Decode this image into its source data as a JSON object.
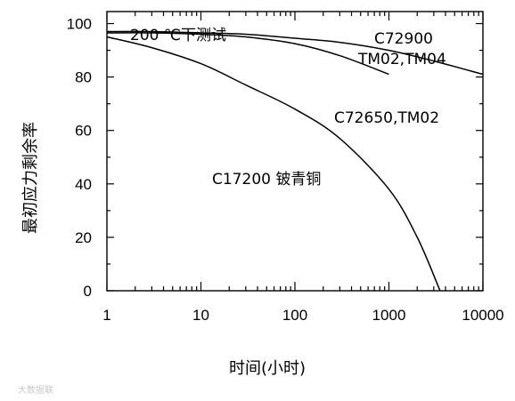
{
  "chart_data": {
    "type": "line",
    "title": "",
    "xlabel": "时间(小时)",
    "ylabel": "最初应力剩余率",
    "x_scale": "log",
    "xlim": [
      1,
      10000
    ],
    "ylim": [
      0,
      100
    ],
    "x_ticks": [
      "1",
      "10",
      "100",
      "1000",
      "10000"
    ],
    "y_ticks": [
      "0",
      "20",
      "40",
      "60",
      "80",
      "100"
    ],
    "grid": false,
    "annotations": {
      "condition": "200 ℃下测试",
      "c72900_line1": "C72900",
      "c72900_line2": "TM02,TM04",
      "c72650": "C72650,TM02",
      "c17200": "C17200 铍青铜"
    },
    "series": [
      {
        "name": "C72900 TM02,TM04",
        "x": [
          1,
          3,
          10,
          30,
          100,
          300,
          1000,
          3000,
          10000
        ],
        "y": [
          97,
          97,
          96.5,
          96,
          94.5,
          93,
          90,
          86,
          81
        ]
      },
      {
        "name": "C72650,TM02",
        "x": [
          1,
          3,
          10,
          30,
          100,
          300,
          1000
        ],
        "y": [
          96.5,
          96.5,
          96,
          95,
          92.5,
          88,
          81
        ]
      },
      {
        "name": "C17200 铍青铜",
        "x": [
          1,
          3,
          10,
          30,
          100,
          300,
          1000,
          2000,
          3500
        ],
        "y": [
          95,
          91,
          85,
          77,
          68,
          57,
          38,
          20,
          0
        ]
      }
    ]
  },
  "watermark": "大数据联"
}
